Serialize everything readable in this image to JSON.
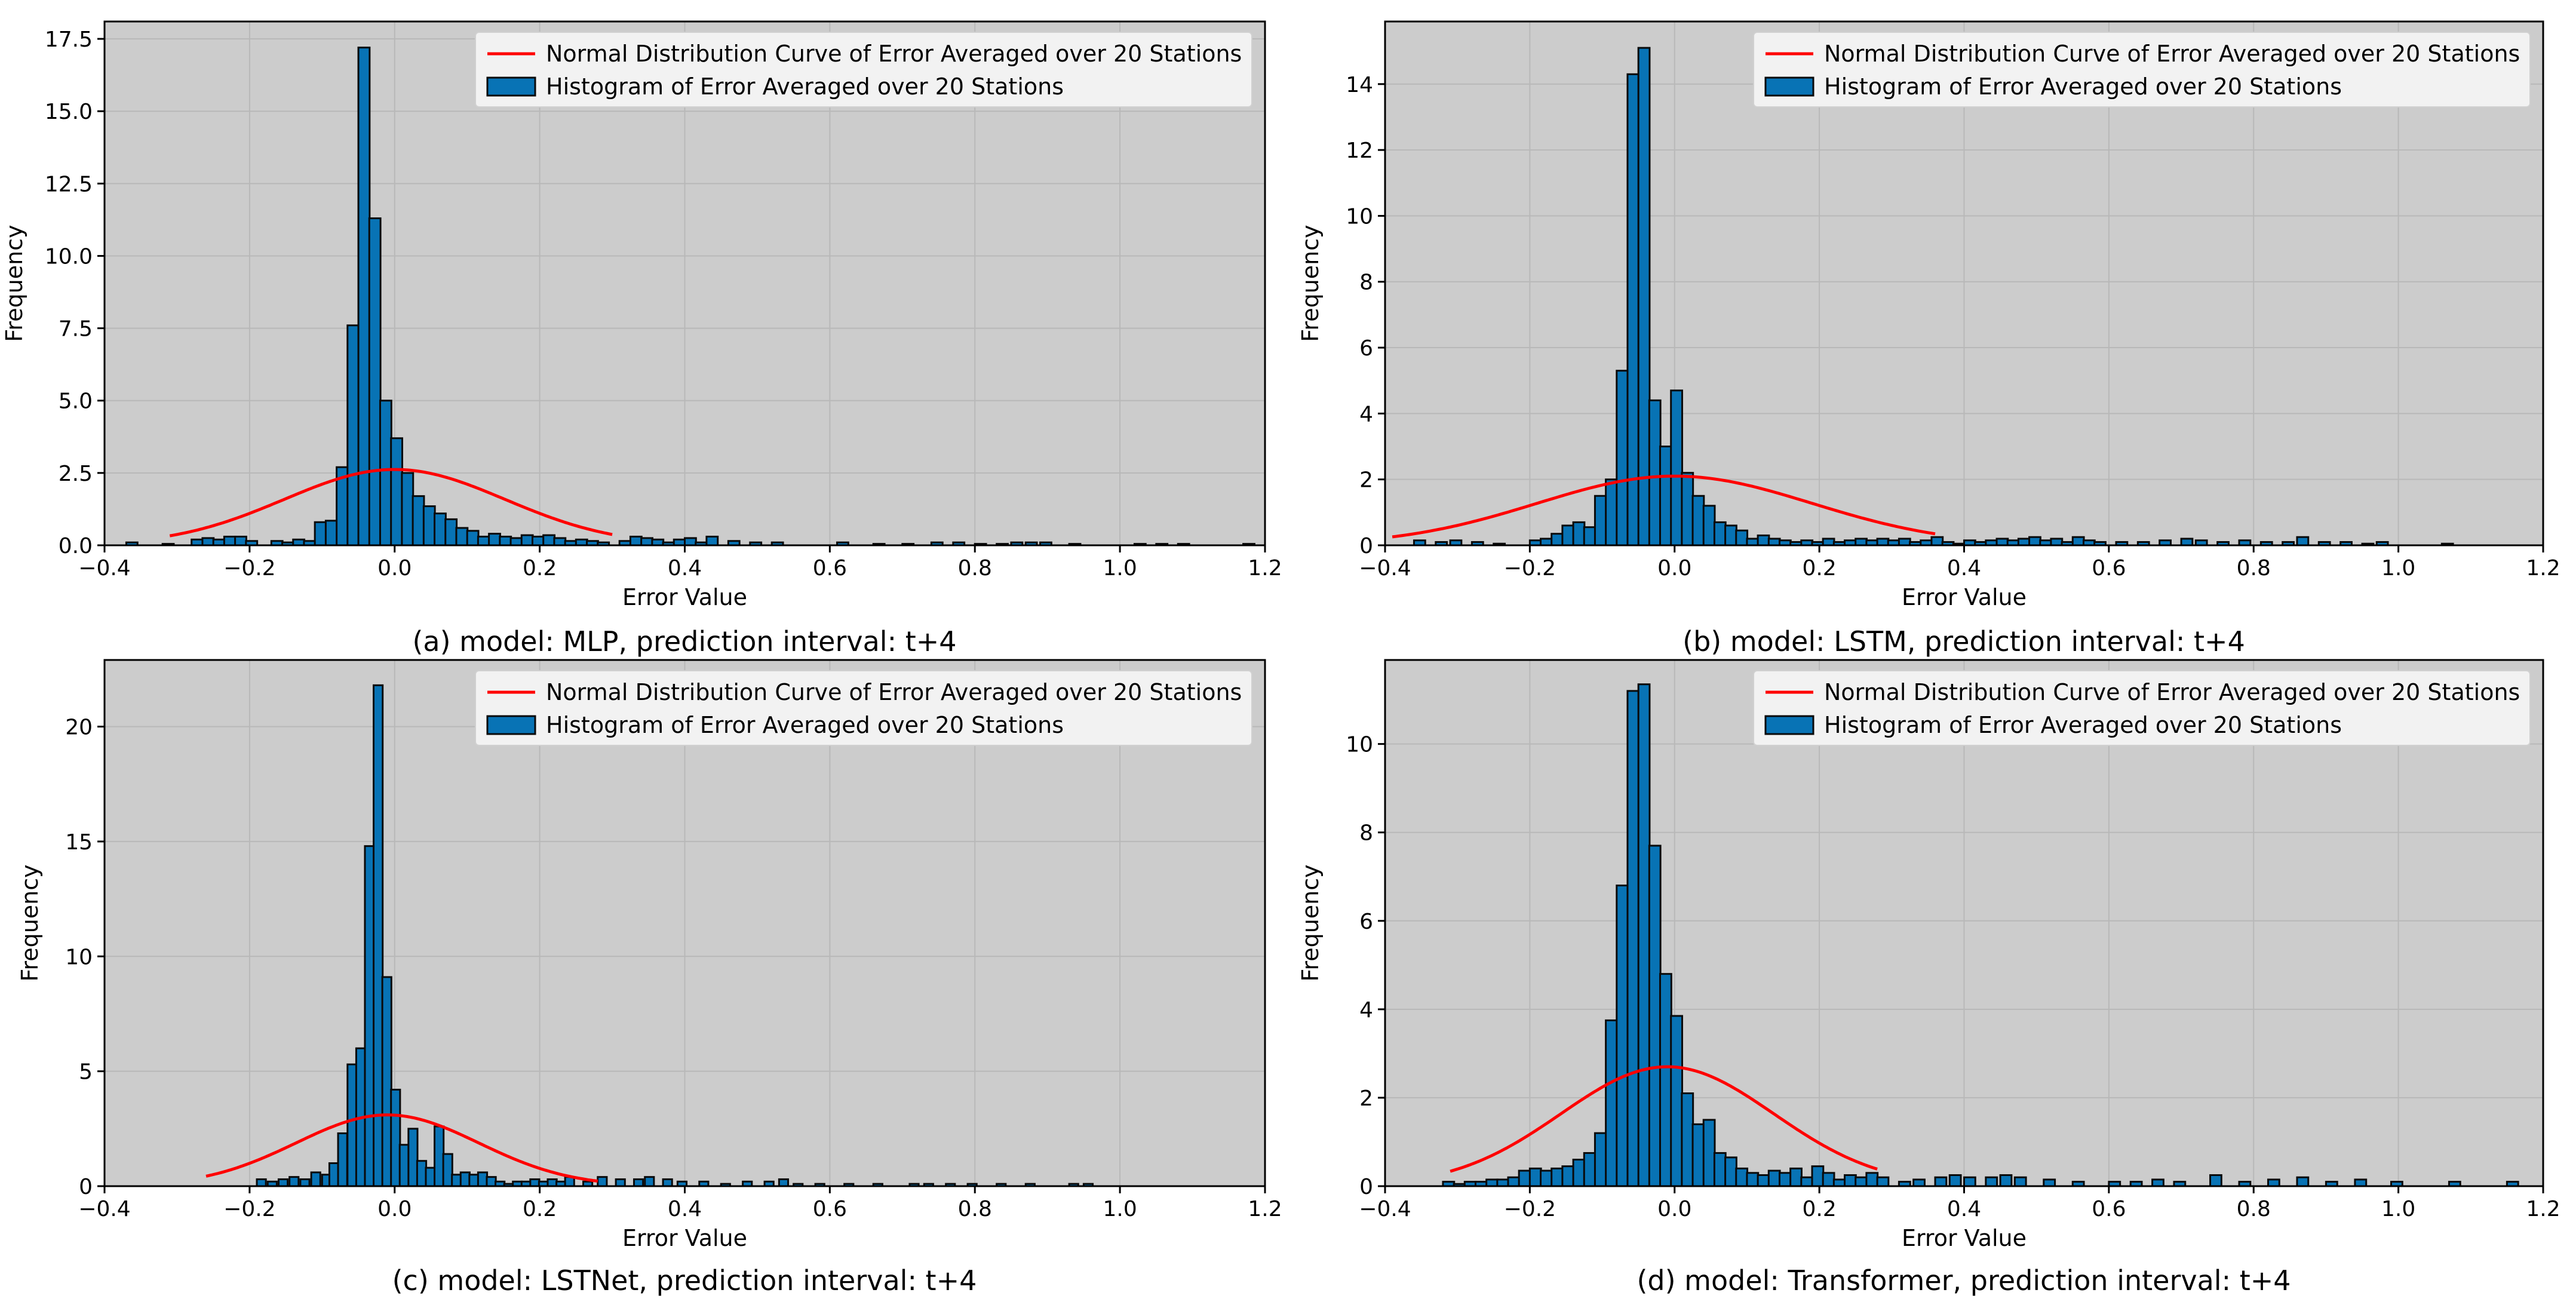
{
  "figure": {
    "background": "#ffffff",
    "plot_background": "#cccccc",
    "grid_color": "#b8b8b8",
    "bar_color": "#0873b5",
    "bar_edge": "#0a0a0a",
    "curve_color": "#ff0000"
  },
  "chart_data": [
    {
      "type": "bar",
      "caption": "(a) model: MLP, prediction interval: t+4",
      "xlabel": "Error Value",
      "ylabel": "Frequency",
      "xlim": [
        -0.4,
        1.2
      ],
      "ylim": [
        0,
        18.1
      ],
      "xticks": [
        -0.4,
        -0.2,
        0.0,
        0.2,
        0.4,
        0.6,
        0.8,
        1.0,
        1.2
      ],
      "xtick_labels": [
        "−0.4",
        "−0.2",
        "0.0",
        "0.2",
        "0.4",
        "0.6",
        "0.8",
        "1.0",
        "1.2"
      ],
      "yticks": [
        0,
        2.5,
        5,
        7.5,
        10,
        12.5,
        15,
        17.5
      ],
      "ytick_labels": [
        "0.0",
        "2.5",
        "5.0",
        "7.5",
        "10.0",
        "12.5",
        "15.0",
        "17.5"
      ],
      "legend": {
        "curve": "Normal Distribution Curve of Error Averaged over 20 Stations",
        "histogram": "Histogram of Error Averaged over 20 Stations",
        "position": "upper right"
      },
      "bin_width": 0.0155,
      "bins": [
        [
          -0.37,
          0.1
        ],
        [
          -0.32,
          0.05
        ],
        [
          -0.28,
          0.2
        ],
        [
          -0.265,
          0.25
        ],
        [
          -0.25,
          0.2
        ],
        [
          -0.235,
          0.3
        ],
        [
          -0.22,
          0.3
        ],
        [
          -0.205,
          0.15
        ],
        [
          -0.17,
          0.15
        ],
        [
          -0.155,
          0.1
        ],
        [
          -0.14,
          0.2
        ],
        [
          -0.125,
          0.15
        ],
        [
          -0.11,
          0.8
        ],
        [
          -0.095,
          0.85
        ],
        [
          -0.08,
          2.7
        ],
        [
          -0.065,
          7.6
        ],
        [
          -0.05,
          17.2
        ],
        [
          -0.035,
          11.3
        ],
        [
          -0.02,
          5.0
        ],
        [
          -0.005,
          3.7
        ],
        [
          0.01,
          2.5
        ],
        [
          0.025,
          1.7
        ],
        [
          0.04,
          1.35
        ],
        [
          0.055,
          1.1
        ],
        [
          0.07,
          0.9
        ],
        [
          0.085,
          0.6
        ],
        [
          0.1,
          0.5
        ],
        [
          0.115,
          0.3
        ],
        [
          0.13,
          0.4
        ],
        [
          0.145,
          0.3
        ],
        [
          0.16,
          0.25
        ],
        [
          0.175,
          0.35
        ],
        [
          0.19,
          0.3
        ],
        [
          0.205,
          0.35
        ],
        [
          0.22,
          0.25
        ],
        [
          0.235,
          0.15
        ],
        [
          0.25,
          0.2
        ],
        [
          0.265,
          0.15
        ],
        [
          0.28,
          0.1
        ],
        [
          0.31,
          0.15
        ],
        [
          0.325,
          0.3
        ],
        [
          0.34,
          0.25
        ],
        [
          0.355,
          0.2
        ],
        [
          0.37,
          0.1
        ],
        [
          0.385,
          0.2
        ],
        [
          0.4,
          0.25
        ],
        [
          0.415,
          0.1
        ],
        [
          0.43,
          0.3
        ],
        [
          0.46,
          0.15
        ],
        [
          0.49,
          0.1
        ],
        [
          0.52,
          0.1
        ],
        [
          0.61,
          0.1
        ],
        [
          0.66,
          0.05
        ],
        [
          0.7,
          0.05
        ],
        [
          0.74,
          0.1
        ],
        [
          0.77,
          0.1
        ],
        [
          0.8,
          0.05
        ],
        [
          0.83,
          0.05
        ],
        [
          0.85,
          0.1
        ],
        [
          0.87,
          0.1
        ],
        [
          0.89,
          0.1
        ],
        [
          0.93,
          0.05
        ],
        [
          1.02,
          0.05
        ],
        [
          1.05,
          0.05
        ],
        [
          1.08,
          0.05
        ],
        [
          1.17,
          0.05
        ]
      ],
      "curve": {
        "mu": 0.0,
        "sigma": 0.152,
        "peak": 2.62,
        "x_range": [
          -0.31,
          0.3
        ]
      }
    },
    {
      "type": "bar",
      "caption": "(b) model: LSTM, prediction interval: t+4",
      "xlabel": "Error Value",
      "ylabel": "Frequency",
      "xlim": [
        -0.4,
        1.2
      ],
      "ylim": [
        0,
        15.9
      ],
      "xticks": [
        -0.4,
        -0.2,
        0.0,
        0.2,
        0.4,
        0.6,
        0.8,
        1.0,
        1.2
      ],
      "xtick_labels": [
        "−0.4",
        "−0.2",
        "0.0",
        "0.2",
        "0.4",
        "0.6",
        "0.8",
        "1.0",
        "1.2"
      ],
      "yticks": [
        0,
        2,
        4,
        6,
        8,
        10,
        12,
        14
      ],
      "ytick_labels": [
        "0",
        "2",
        "4",
        "6",
        "8",
        "10",
        "12",
        "14"
      ],
      "legend": {
        "curve": "Normal Distribution Curve of Error Averaged over 20 Stations",
        "histogram": "Histogram of Error Averaged over 20 Stations",
        "position": "upper right"
      },
      "bin_width": 0.0155,
      "bins": [
        [
          -0.36,
          0.15
        ],
        [
          -0.33,
          0.1
        ],
        [
          -0.31,
          0.15
        ],
        [
          -0.28,
          0.1
        ],
        [
          -0.25,
          0.05
        ],
        [
          -0.2,
          0.15
        ],
        [
          -0.185,
          0.2
        ],
        [
          -0.17,
          0.35
        ],
        [
          -0.155,
          0.6
        ],
        [
          -0.14,
          0.7
        ],
        [
          -0.125,
          0.55
        ],
        [
          -0.11,
          1.5
        ],
        [
          -0.095,
          2.0
        ],
        [
          -0.08,
          5.3
        ],
        [
          -0.065,
          14.3
        ],
        [
          -0.05,
          15.1
        ],
        [
          -0.035,
          4.4
        ],
        [
          -0.02,
          3.0
        ],
        [
          -0.005,
          4.7
        ],
        [
          0.01,
          2.2
        ],
        [
          0.025,
          1.5
        ],
        [
          0.04,
          1.2
        ],
        [
          0.055,
          0.7
        ],
        [
          0.07,
          0.6
        ],
        [
          0.085,
          0.45
        ],
        [
          0.1,
          0.2
        ],
        [
          0.115,
          0.3
        ],
        [
          0.13,
          0.2
        ],
        [
          0.145,
          0.15
        ],
        [
          0.16,
          0.1
        ],
        [
          0.175,
          0.15
        ],
        [
          0.19,
          0.1
        ],
        [
          0.205,
          0.2
        ],
        [
          0.22,
          0.1
        ],
        [
          0.235,
          0.15
        ],
        [
          0.25,
          0.2
        ],
        [
          0.265,
          0.15
        ],
        [
          0.28,
          0.2
        ],
        [
          0.295,
          0.15
        ],
        [
          0.31,
          0.2
        ],
        [
          0.325,
          0.1
        ],
        [
          0.34,
          0.15
        ],
        [
          0.355,
          0.25
        ],
        [
          0.37,
          0.1
        ],
        [
          0.385,
          0.05
        ],
        [
          0.4,
          0.15
        ],
        [
          0.415,
          0.1
        ],
        [
          0.43,
          0.15
        ],
        [
          0.445,
          0.2
        ],
        [
          0.46,
          0.15
        ],
        [
          0.475,
          0.2
        ],
        [
          0.49,
          0.25
        ],
        [
          0.505,
          0.15
        ],
        [
          0.52,
          0.2
        ],
        [
          0.535,
          0.1
        ],
        [
          0.55,
          0.25
        ],
        [
          0.565,
          0.15
        ],
        [
          0.58,
          0.1
        ],
        [
          0.61,
          0.1
        ],
        [
          0.64,
          0.1
        ],
        [
          0.67,
          0.15
        ],
        [
          0.7,
          0.2
        ],
        [
          0.72,
          0.15
        ],
        [
          0.75,
          0.1
        ],
        [
          0.78,
          0.15
        ],
        [
          0.81,
          0.1
        ],
        [
          0.84,
          0.1
        ],
        [
          0.86,
          0.25
        ],
        [
          0.89,
          0.1
        ],
        [
          0.92,
          0.1
        ],
        [
          0.95,
          0.05
        ],
        [
          0.97,
          0.1
        ],
        [
          1.06,
          0.05
        ]
      ],
      "curve": {
        "mu": 0.0,
        "sigma": 0.19,
        "peak": 2.1,
        "x_range": [
          -0.39,
          0.36
        ]
      }
    },
    {
      "type": "bar",
      "caption": "(c) model: LSTNet, prediction interval: t+4",
      "xlabel": "Error Value",
      "ylabel": "Frequency",
      "xlim": [
        -0.4,
        1.2
      ],
      "ylim": [
        0,
        22.9
      ],
      "xticks": [
        -0.4,
        -0.2,
        0.0,
        0.2,
        0.4,
        0.6,
        0.8,
        1.0,
        1.2
      ],
      "xtick_labels": [
        "−0.4",
        "−0.2",
        "0.0",
        "0.2",
        "0.4",
        "0.6",
        "0.8",
        "1.0",
        "1.2"
      ],
      "yticks": [
        0,
        5,
        10,
        15,
        20
      ],
      "ytick_labels": [
        "0",
        "5",
        "10",
        "15",
        "20"
      ],
      "legend": {
        "curve": "Normal Distribution Curve of Error Averaged over 20 Stations",
        "histogram": "Histogram of Error Averaged over 20 Stations",
        "position": "upper right"
      },
      "bin_width": 0.0125,
      "bins": [
        [
          -0.19,
          0.3
        ],
        [
          -0.175,
          0.2
        ],
        [
          -0.16,
          0.3
        ],
        [
          -0.145,
          0.4
        ],
        [
          -0.13,
          0.3
        ],
        [
          -0.115,
          0.6
        ],
        [
          -0.1,
          0.5
        ],
        [
          -0.09,
          1.0
        ],
        [
          -0.078,
          2.3
        ],
        [
          -0.065,
          5.3
        ],
        [
          -0.053,
          6.0
        ],
        [
          -0.041,
          14.8
        ],
        [
          -0.029,
          21.8
        ],
        [
          -0.017,
          9.1
        ],
        [
          -0.005,
          4.2
        ],
        [
          0.007,
          1.8
        ],
        [
          0.019,
          2.5
        ],
        [
          0.031,
          1.1
        ],
        [
          0.043,
          0.8
        ],
        [
          0.055,
          2.6
        ],
        [
          0.067,
          1.4
        ],
        [
          0.079,
          0.5
        ],
        [
          0.091,
          0.6
        ],
        [
          0.103,
          0.5
        ],
        [
          0.115,
          0.6
        ],
        [
          0.127,
          0.4
        ],
        [
          0.139,
          0.2
        ],
        [
          0.151,
          0.1
        ],
        [
          0.163,
          0.2
        ],
        [
          0.175,
          0.2
        ],
        [
          0.187,
          0.3
        ],
        [
          0.199,
          0.2
        ],
        [
          0.211,
          0.3
        ],
        [
          0.223,
          0.2
        ],
        [
          0.235,
          0.4
        ],
        [
          0.26,
          0.2
        ],
        [
          0.28,
          0.4
        ],
        [
          0.305,
          0.3
        ],
        [
          0.33,
          0.3
        ],
        [
          0.345,
          0.4
        ],
        [
          0.37,
          0.3
        ],
        [
          0.39,
          0.2
        ],
        [
          0.42,
          0.2
        ],
        [
          0.45,
          0.1
        ],
        [
          0.48,
          0.2
        ],
        [
          0.51,
          0.2
        ],
        [
          0.53,
          0.3
        ],
        [
          0.55,
          0.1
        ],
        [
          0.58,
          0.1
        ],
        [
          0.62,
          0.1
        ],
        [
          0.66,
          0.1
        ],
        [
          0.71,
          0.1
        ],
        [
          0.73,
          0.1
        ],
        [
          0.76,
          0.1
        ],
        [
          0.79,
          0.1
        ],
        [
          0.83,
          0.1
        ],
        [
          0.87,
          0.1
        ],
        [
          0.93,
          0.1
        ],
        [
          0.95,
          0.1
        ]
      ],
      "curve": {
        "mu": -0.01,
        "sigma": 0.126,
        "peak": 3.1,
        "x_range": [
          -0.26,
          0.28
        ]
      }
    },
    {
      "type": "bar",
      "caption": "(d) model: Transformer, prediction interval: t+4",
      "xlabel": "Error Value",
      "ylabel": "Frequency",
      "xlim": [
        -0.4,
        1.2
      ],
      "ylim": [
        0,
        11.9
      ],
      "xticks": [
        -0.4,
        -0.2,
        0.0,
        0.2,
        0.4,
        0.6,
        0.8,
        1.0,
        1.2
      ],
      "xtick_labels": [
        "−0.4",
        "−0.2",
        "0.0",
        "0.2",
        "0.4",
        "0.6",
        "0.8",
        "1.0",
        "1.2"
      ],
      "yticks": [
        0,
        2,
        4,
        6,
        8,
        10
      ],
      "ytick_labels": [
        "0",
        "2",
        "4",
        "6",
        "8",
        "10"
      ],
      "legend": {
        "curve": "Normal Distribution Curve of Error Averaged over 20 Stations",
        "histogram": "Histogram of Error Averaged over 20 Stations",
        "position": "upper right"
      },
      "bin_width": 0.0155,
      "bins": [
        [
          -0.32,
          0.1
        ],
        [
          -0.305,
          0.05
        ],
        [
          -0.29,
          0.1
        ],
        [
          -0.275,
          0.1
        ],
        [
          -0.26,
          0.15
        ],
        [
          -0.245,
          0.15
        ],
        [
          -0.23,
          0.2
        ],
        [
          -0.215,
          0.35
        ],
        [
          -0.2,
          0.4
        ],
        [
          -0.185,
          0.35
        ],
        [
          -0.17,
          0.4
        ],
        [
          -0.155,
          0.45
        ],
        [
          -0.14,
          0.6
        ],
        [
          -0.125,
          0.75
        ],
        [
          -0.11,
          1.2
        ],
        [
          -0.095,
          3.75
        ],
        [
          -0.08,
          6.8
        ],
        [
          -0.065,
          11.2
        ],
        [
          -0.05,
          11.35
        ],
        [
          -0.035,
          7.7
        ],
        [
          -0.02,
          4.8
        ],
        [
          -0.005,
          3.85
        ],
        [
          0.01,
          2.1
        ],
        [
          0.025,
          1.4
        ],
        [
          0.04,
          1.5
        ],
        [
          0.055,
          0.75
        ],
        [
          0.07,
          0.65
        ],
        [
          0.085,
          0.4
        ],
        [
          0.1,
          0.3
        ],
        [
          0.115,
          0.25
        ],
        [
          0.13,
          0.35
        ],
        [
          0.145,
          0.3
        ],
        [
          0.16,
          0.4
        ],
        [
          0.175,
          0.2
        ],
        [
          0.19,
          0.45
        ],
        [
          0.205,
          0.3
        ],
        [
          0.22,
          0.15
        ],
        [
          0.235,
          0.25
        ],
        [
          0.25,
          0.2
        ],
        [
          0.265,
          0.3
        ],
        [
          0.28,
          0.2
        ],
        [
          0.31,
          0.1
        ],
        [
          0.33,
          0.15
        ],
        [
          0.36,
          0.2
        ],
        [
          0.38,
          0.25
        ],
        [
          0.4,
          0.2
        ],
        [
          0.43,
          0.2
        ],
        [
          0.45,
          0.25
        ],
        [
          0.47,
          0.2
        ],
        [
          0.51,
          0.15
        ],
        [
          0.55,
          0.1
        ],
        [
          0.6,
          0.1
        ],
        [
          0.63,
          0.1
        ],
        [
          0.66,
          0.15
        ],
        [
          0.69,
          0.1
        ],
        [
          0.74,
          0.25
        ],
        [
          0.78,
          0.1
        ],
        [
          0.82,
          0.15
        ],
        [
          0.86,
          0.2
        ],
        [
          0.9,
          0.1
        ],
        [
          0.94,
          0.15
        ],
        [
          0.99,
          0.1
        ],
        [
          1.07,
          0.1
        ],
        [
          1.15,
          0.1
        ]
      ],
      "curve": {
        "mu": -0.01,
        "sigma": 0.147,
        "peak": 2.7,
        "x_range": [
          -0.31,
          0.28
        ]
      }
    }
  ]
}
